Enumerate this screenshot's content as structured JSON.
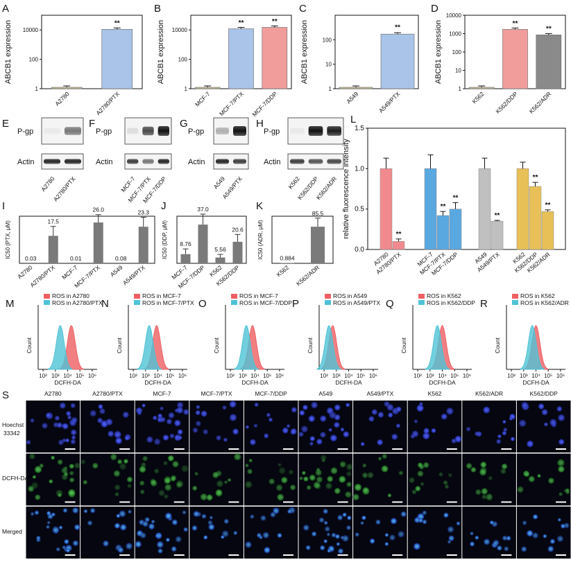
{
  "figure": {
    "panels": {
      "A": "A",
      "B": "B",
      "C": "C",
      "D": "D",
      "E": "E",
      "F": "F",
      "G": "G",
      "H": "H",
      "I": "I",
      "J": "J",
      "K": "K",
      "L": "L",
      "M": "M",
      "N": "N",
      "O": "O",
      "P": "P",
      "Q": "Q",
      "R": "R",
      "S": "S"
    },
    "colors": {
      "parental": "#c9bf96",
      "ptx_blue": "#a9c4e8",
      "ddp_pink": "#f09d9c",
      "adr_gray": "#8a8a8a",
      "L_pink": "#f08a8e",
      "L_blue": "#5aa8e0",
      "L_gray": "#c0c0c0",
      "L_yellow": "#e8c058",
      "hist_red": "#ee5f63",
      "hist_cyan": "#4fc3d6",
      "ic50_bar": "#7a7a7a"
    }
  },
  "chart_data": [
    {
      "id": "A",
      "type": "bar",
      "scale": "log",
      "ylabel": "ABCB1 expression",
      "yticks": [
        "1",
        "100",
        "10000"
      ],
      "ylim": [
        1,
        100000
      ],
      "categories": [
        "A2780",
        "A2780/PTX"
      ],
      "values": [
        1,
        11000
      ],
      "errors": [
        0.1,
        800
      ],
      "colors": [
        "parental",
        "ptx_blue"
      ],
      "sig": [
        "",
        "**"
      ]
    },
    {
      "id": "B",
      "type": "bar",
      "scale": "log",
      "ylabel": "ABCB1 expression",
      "yticks": [
        "1",
        "100",
        "10000"
      ],
      "ylim": [
        1,
        100000
      ],
      "categories": [
        "MCF-7",
        "MCF-7/PTX",
        "MCF-7/DDP"
      ],
      "values": [
        1,
        12000,
        15000
      ],
      "errors": [
        0.1,
        900,
        900
      ],
      "colors": [
        "parental",
        "ptx_blue",
        "ddp_pink"
      ],
      "sig": [
        "",
        "**",
        "**"
      ]
    },
    {
      "id": "C",
      "type": "bar",
      "scale": "log",
      "ylabel": "ABCB1 expression",
      "yticks": [
        "1",
        "10",
        "100"
      ],
      "ylim": [
        1,
        1000
      ],
      "categories": [
        "A549",
        "A549/PTX"
      ],
      "values": [
        1,
        170
      ],
      "errors": [
        0.05,
        20
      ],
      "colors": [
        "parental",
        "ptx_blue"
      ],
      "sig": [
        "",
        "**"
      ]
    },
    {
      "id": "D",
      "type": "bar",
      "scale": "log",
      "ylabel": "ABCB1 expression",
      "yticks": [
        "1",
        "10",
        "100",
        "1000",
        "10000"
      ],
      "ylim": [
        1,
        10000
      ],
      "categories": [
        "K562",
        "K562/DDP",
        "K562/ADR"
      ],
      "values": [
        1,
        1700,
        850
      ],
      "errors": [
        0.05,
        80,
        60
      ],
      "colors": [
        "parental",
        "ddp_pink",
        "adr_gray"
      ],
      "sig": [
        "",
        "**",
        "**"
      ]
    },
    {
      "id": "I",
      "type": "bar",
      "ylabel": "IC50 (PTX, μM)",
      "ylim": [
        0,
        30
      ],
      "categories": [
        "A2780",
        "A2780/PTX",
        "MCF-7",
        "MCF-7/PTX",
        "A549",
        "A549/PTX"
      ],
      "values": [
        0.03,
        17.5,
        0.01,
        26.0,
        0.08,
        23.3
      ],
      "labels": [
        "0.03",
        "17.5",
        "0.01",
        "26.0",
        "0.08",
        "23.3"
      ],
      "errors": [
        0,
        6,
        0,
        5,
        0,
        6
      ]
    },
    {
      "id": "J",
      "type": "bar",
      "ylabel": "IC50 (DDP, μM)",
      "ylim": [
        0,
        45
      ],
      "categories": [
        "MCF-7",
        "MCF-7/DDP",
        "K562",
        "K562/DDP"
      ],
      "values": [
        8.76,
        37.0,
        5.56,
        20.6
      ],
      "labels": [
        "8.76",
        "37.0",
        "5.56",
        "20.6"
      ],
      "errors": [
        5,
        10,
        3,
        7
      ]
    },
    {
      "id": "K",
      "type": "bar",
      "ylabel": "IC50 (ADR, μM)",
      "ylim": [
        0,
        110
      ],
      "categories": [
        "K562",
        "K562/ADR"
      ],
      "values": [
        0.884,
        85.5
      ],
      "labels": [
        "0.884",
        "85.5"
      ],
      "errors": [
        0,
        20
      ]
    },
    {
      "id": "L",
      "type": "bar",
      "ylabel": "relative fluorescence intensity",
      "yticks": [
        "0.0",
        "0.5",
        "1.0",
        "1.5"
      ],
      "ylim": [
        0,
        1.5
      ],
      "categories": [
        "A2780",
        "A2780/PTX",
        "MCF-7",
        "MCF-7/PTX",
        "MCF-7/DDP",
        "A549",
        "A549/PTX",
        "K562",
        "K562/DDP",
        "K562/ADR"
      ],
      "values": [
        1.0,
        0.1,
        1.0,
        0.42,
        0.5,
        1.0,
        0.35,
        1.0,
        0.78,
        0.47
      ],
      "errors": [
        0.13,
        0.03,
        0.17,
        0.05,
        0.08,
        0.13,
        0.01,
        0.08,
        0.05,
        0.02
      ],
      "colors": [
        "L_pink",
        "L_pink",
        "L_blue",
        "L_blue",
        "L_blue",
        "L_gray",
        "L_gray",
        "L_yellow",
        "L_yellow",
        "L_yellow"
      ],
      "sig": [
        "",
        "**",
        "",
        "**",
        "**",
        "",
        "**",
        "",
        "**",
        "**"
      ]
    }
  ],
  "histograms": [
    {
      "id": "M",
      "legend": [
        "ROS in A2780",
        "ROS in A2780/PTX"
      ],
      "xlabel": "DCFH-DA",
      "ylabel": "Count",
      "peak_parental": 4.3,
      "peak_resistant": 3.4
    },
    {
      "id": "N",
      "legend": [
        "ROS in MCF-7",
        "ROS in MCF-7/PTX"
      ],
      "xlabel": "DCFH-DA",
      "ylabel": "Count",
      "peak_parental": 3.9,
      "peak_resistant": 3.3
    },
    {
      "id": "O",
      "legend": [
        "ROS in MCF-7",
        "ROS in MCF-7/DDP"
      ],
      "xlabel": "DCFH-DA",
      "ylabel": "Count",
      "peak_parental": 3.8,
      "peak_resistant": 3.3
    },
    {
      "id": "P",
      "legend": [
        "ROS in A549",
        "ROS in A549/PTX"
      ],
      "xlabel": "DCFH-DA",
      "ylabel": "Count",
      "peak_parental": 2.7,
      "peak_resistant": 2.4
    },
    {
      "id": "Q",
      "legend": [
        "ROS in K562",
        "ROS in K562/DDP"
      ],
      "xlabel": "DCFH-DA",
      "ylabel": "Count",
      "peak_parental": 4.0,
      "peak_resistant": 3.6
    },
    {
      "id": "R",
      "legend": [
        "ROS in K562",
        "ROS in K562/ADR"
      ],
      "xlabel": "DCFH-DA",
      "ylabel": "Count",
      "peak_parental": 4.0,
      "peak_resistant": 3.7
    }
  ],
  "hist_ticks": [
    "10²",
    "10³",
    "10⁴",
    "10⁵",
    "10⁶"
  ],
  "western": {
    "rows": [
      "P-gp",
      "Actin"
    ],
    "E": [
      "A2780",
      "A2780/PTX"
    ],
    "F": [
      "MCF-7",
      "MCF-7/PTX",
      "MCF-7/DDP"
    ],
    "G": [
      "A549",
      "A549/PTX"
    ],
    "H": [
      "K562",
      "K562/DDP",
      "K562/ADR"
    ]
  },
  "microscopy": {
    "columns": [
      "A2780",
      "A2780/PTX",
      "MCF-7",
      "MCF-7/PTX",
      "MCF-7/DDP",
      "A549",
      "A549/PTX",
      "K562",
      "K562/ADR",
      "K562/DDP"
    ],
    "rows": [
      "Hoechst\n33342",
      "DCFH-DA",
      "Merged"
    ],
    "row_labels": {
      "hoechst1": "Hoechst",
      "hoechst2": "33342",
      "dcfh": "DCFH-DA",
      "merged": "Merged"
    }
  }
}
